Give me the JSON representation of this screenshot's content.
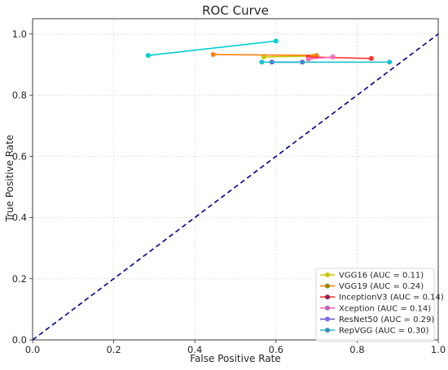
{
  "chart_data": {
    "type": "line",
    "title": "ROC Curve",
    "xlabel": "False Positive Rate",
    "ylabel": "True Positive Rate",
    "xlim": [
      0.0,
      1.0
    ],
    "ylim": [
      0.0,
      1.05
    ],
    "xticks": [
      "0.0",
      "0.2",
      "0.4",
      "0.6",
      "0.8",
      "1.0"
    ],
    "yticks": [
      "0.0",
      "0.2",
      "0.4",
      "0.6",
      "0.8",
      "1.0"
    ],
    "grid": true,
    "legend_position": "lower-right",
    "diagonal": {
      "x": [
        0,
        1
      ],
      "y": [
        0,
        1
      ],
      "color": "#00008b",
      "style": "dashed"
    },
    "series": [
      {
        "name": "VGG16 (AUC = 0.11)",
        "color": "#c8c800",
        "x": [
          0.57,
          0.69
        ],
        "y": [
          0.925,
          0.928
        ]
      },
      {
        "name": "VGG19 (AUC = 0.24)",
        "color": "#ff7f0e",
        "marker_color": "#8c8c00",
        "x": [
          0.445,
          0.7
        ],
        "y": [
          0.933,
          0.93
        ]
      },
      {
        "name": "InceptionV3 (AUC = 0.14)",
        "color": "#ff3333",
        "marker_color": "#8b2252",
        "x": [
          0.68,
          0.835
        ],
        "y": [
          0.925,
          0.92
        ]
      },
      {
        "name": "Xception (AUC = 0.14)",
        "color": "#ff69b4",
        "marker_color": "#b266b2",
        "x": [
          0.68,
          0.74
        ],
        "y": [
          0.918,
          0.925
        ]
      },
      {
        "name": "ResNet50 (AUC = 0.29)",
        "color": "#6a5acd",
        "marker_color": "#7b68ee",
        "x": [
          0.59,
          0.665
        ],
        "y": [
          0.908,
          0.908
        ]
      },
      {
        "name": "RepVGG (AUC = 0.30)",
        "color": "#17becf",
        "marker_color": "#3d8fb0",
        "x": [
          0.565,
          0.88
        ],
        "y": [
          0.908,
          0.908
        ]
      },
      {
        "name": "",
        "color": "#00ced1",
        "x": [
          0.285,
          0.6
        ],
        "y": [
          0.93,
          0.977
        ]
      }
    ]
  }
}
